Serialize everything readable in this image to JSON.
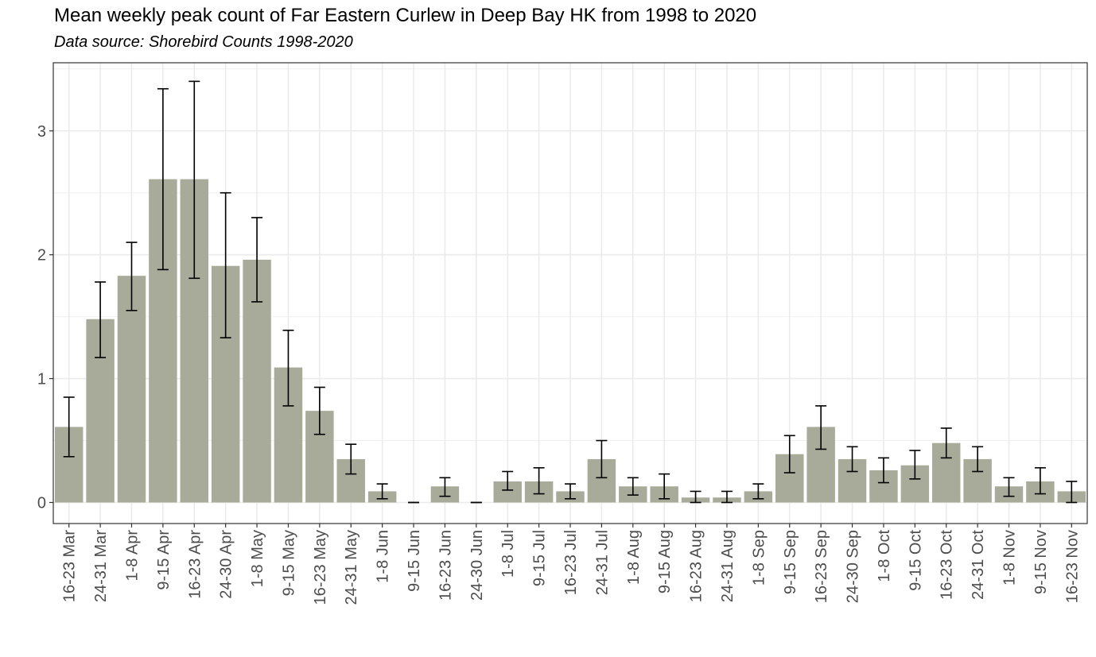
{
  "chart_data": {
    "type": "bar",
    "title": "Mean weekly peak count of Far Eastern Curlew in Deep Bay HK from 1998 to 2020",
    "subtitle": "Data source: Shorebird Counts 1998-2020",
    "xlabel": "",
    "ylabel": "",
    "ylim": [
      -0.17,
      3.55
    ],
    "yticks": [
      0,
      1,
      2,
      3
    ],
    "grid": true,
    "bar_color": "#a8ab9a",
    "categories": [
      "16-23 Mar",
      "24-31 Mar",
      "1-8 Apr",
      "9-15 Apr",
      "16-23 Apr",
      "24-30 Apr",
      "1-8 May",
      "9-15 May",
      "16-23 May",
      "24-31 May",
      "1-8 Jun",
      "9-15 Jun",
      "16-23 Jun",
      "24-30 Jun",
      "1-8 Jul",
      "9-15 Jul",
      "16-23 Jul",
      "24-31 Jul",
      "1-8 Aug",
      "9-15 Aug",
      "16-23 Aug",
      "24-31 Aug",
      "1-8 Sep",
      "9-15 Sep",
      "16-23 Sep",
      "24-30 Sep",
      "1-8 Oct",
      "9-15 Oct",
      "16-23 Oct",
      "24-31 Oct",
      "1-8 Nov",
      "9-15 Nov",
      "16-23 Nov"
    ],
    "values": [
      0.61,
      1.48,
      1.83,
      2.61,
      2.61,
      1.91,
      1.96,
      1.09,
      0.74,
      0.35,
      0.09,
      0.0,
      0.13,
      0.0,
      0.17,
      0.17,
      0.09,
      0.35,
      0.13,
      0.13,
      0.04,
      0.04,
      0.09,
      0.39,
      0.61,
      0.35,
      0.26,
      0.3,
      0.48,
      0.35,
      0.13,
      0.17,
      0.09
    ],
    "err_low": [
      0.37,
      1.17,
      1.55,
      1.88,
      1.81,
      1.33,
      1.62,
      0.78,
      0.55,
      0.23,
      0.03,
      0.0,
      0.05,
      0.0,
      0.1,
      0.07,
      0.03,
      0.2,
      0.06,
      0.03,
      0.0,
      0.0,
      0.03,
      0.24,
      0.43,
      0.25,
      0.16,
      0.19,
      0.36,
      0.25,
      0.05,
      0.07,
      0.0
    ],
    "err_high": [
      0.85,
      1.78,
      2.1,
      3.34,
      3.4,
      2.5,
      2.3,
      1.39,
      0.93,
      0.47,
      0.15,
      0.0,
      0.2,
      0.0,
      0.25,
      0.28,
      0.15,
      0.5,
      0.2,
      0.23,
      0.09,
      0.09,
      0.15,
      0.54,
      0.78,
      0.45,
      0.36,
      0.42,
      0.6,
      0.45,
      0.2,
      0.28,
      0.17
    ]
  }
}
